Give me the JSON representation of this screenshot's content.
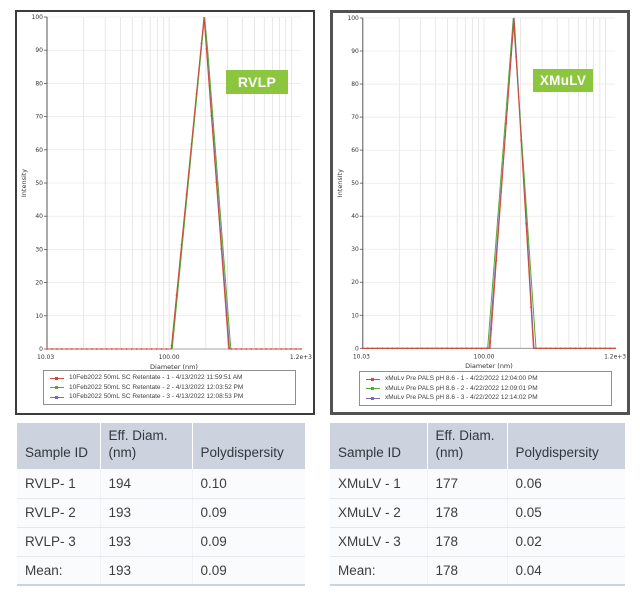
{
  "accent_green": "#8cc63f",
  "chart_data": [
    {
      "type": "line",
      "badge": "RVLP",
      "badge_color": "#8cc63f",
      "xlabel": "Diameter (nm)",
      "ylabel": "Intensity",
      "x_scale": "log",
      "xlim": [
        10.03,
        1200
      ],
      "ylim": [
        0,
        100
      ],
      "grid": true,
      "legend_position": "bottom",
      "x_ticks": [
        {
          "value": 10.03,
          "label": "10.03"
        },
        {
          "value": 100,
          "label": "100.00"
        },
        {
          "value": 1200,
          "label": "1.2e+3"
        }
      ],
      "y_ticks": [
        0,
        10,
        20,
        30,
        40,
        50,
        60,
        70,
        80,
        90,
        100
      ],
      "series": [
        {
          "name": "10Feb2022 50mL SC Retentate - 1 - 4/13/2022 11:59:51 AM",
          "color": "#cf4a3d",
          "markers": true,
          "points": [
            [
              10.03,
              0
            ],
            [
              104,
              0
            ],
            [
              193,
              100
            ],
            [
              308,
              0
            ],
            [
              1200,
              0
            ]
          ]
        },
        {
          "name": "10Feb2022 50mL SC Retentate - 2 - 4/13/2022 12:03:52 PM",
          "color": "#56a839",
          "markers": false,
          "points": [
            [
              10.03,
              0
            ],
            [
              106,
              0
            ],
            [
              195,
              100
            ],
            [
              207,
              90
            ],
            [
              320,
              0
            ],
            [
              1200,
              0
            ]
          ]
        },
        {
          "name": "10Feb2022 50mL SC Retentate - 3 - 4/13/2022 12:08:53 PM",
          "color": "#7b6bb5",
          "markers": false,
          "points": [
            [
              10.03,
              0
            ],
            [
              105,
              0
            ],
            [
              194,
              100
            ],
            [
              312,
              0
            ],
            [
              1200,
              0
            ]
          ]
        }
      ]
    },
    {
      "type": "line",
      "badge": "XMuLV",
      "badge_color": "#8cc63f",
      "xlabel": "Diameter (nm)",
      "ylabel": "Intensity",
      "x_scale": "log",
      "xlim": [
        10.03,
        1200
      ],
      "ylim": [
        0,
        100
      ],
      "grid": true,
      "legend_position": "bottom",
      "x_ticks": [
        {
          "value": 10.03,
          "label": "10.03"
        },
        {
          "value": 100,
          "label": "100.00"
        },
        {
          "value": 1200,
          "label": "1.2e+3"
        }
      ],
      "y_ticks": [
        0,
        10,
        20,
        30,
        40,
        50,
        60,
        70,
        80,
        90,
        100
      ],
      "series": [
        {
          "name": "xMuLv Pre PALS pH 8.6 - 1 - 4/22/2022 12:04:00 PM",
          "color": "#cf4a3d",
          "markers": true,
          "points": [
            [
              10.03,
              0
            ],
            [
              112,
              0
            ],
            [
              176,
              100
            ],
            [
              255,
              0
            ],
            [
              1200,
              0
            ]
          ]
        },
        {
          "name": "xMuLv Pre PALS pH 8.6 - 2 - 4/22/2022 12:09:01 PM",
          "color": "#56a839",
          "markers": false,
          "points": [
            [
              10.03,
              0
            ],
            [
              107,
              0
            ],
            [
              174,
              100
            ],
            [
              268,
              0
            ],
            [
              1200,
              0
            ]
          ]
        },
        {
          "name": "xMuLv Pre PALS pH 8.6 - 3 - 4/22/2022 12:14:02 PM",
          "color": "#7b6bb5",
          "markers": false,
          "points": [
            [
              10.03,
              0
            ],
            [
              110,
              0
            ],
            [
              177,
              100
            ],
            [
              258,
              0
            ],
            [
              1200,
              0
            ]
          ]
        }
      ]
    }
  ],
  "tables": [
    {
      "headers": [
        "Sample ID",
        "Eff. Diam.\n(nm)",
        "Polydispersity"
      ],
      "rows": [
        [
          "RVLP- 1",
          "194",
          "0.10"
        ],
        [
          "RVLP- 2",
          "193",
          "0.09"
        ],
        [
          "RVLP- 3",
          "193",
          "0.09"
        ],
        [
          "Mean:",
          "193",
          "0.09"
        ]
      ]
    },
    {
      "headers": [
        "Sample ID",
        "Eff. Diam.\n(nm)",
        "Polydispersity"
      ],
      "rows": [
        [
          "XMuLV - 1",
          "177",
          "0.06"
        ],
        [
          "XMuLV - 2",
          "178",
          "0.05"
        ],
        [
          "XMuLV - 3",
          "178",
          "0.02"
        ],
        [
          "Mean:",
          "178",
          "0.04"
        ]
      ]
    }
  ]
}
